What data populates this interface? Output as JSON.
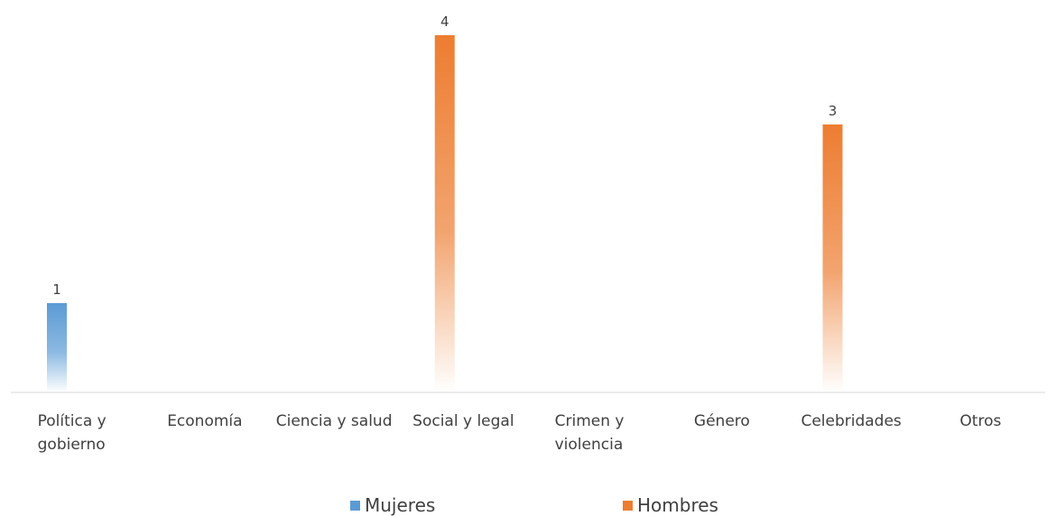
{
  "chart_data": {
    "type": "bar",
    "categories": [
      [
        "Política y",
        "gobierno"
      ],
      [
        "Economía"
      ],
      [
        "Ciencia y salud"
      ],
      [
        "Social y legal"
      ],
      [
        "Crimen y",
        "violencia"
      ],
      [
        "Género"
      ],
      [
        "Celebridades"
      ],
      [
        "Otros"
      ]
    ],
    "series": [
      {
        "name": "Mujeres",
        "color": "#5B9BD5",
        "values": [
          1,
          0,
          0,
          0,
          0,
          0,
          0,
          0
        ]
      },
      {
        "name": "Hombres",
        "color": "#ED7D31",
        "values": [
          0,
          0,
          0,
          4,
          0,
          0,
          3,
          0
        ]
      }
    ],
    "ylim": [
      0,
      4
    ],
    "grid": false,
    "legend": "bottom",
    "bar_style": "gradient-fade"
  }
}
